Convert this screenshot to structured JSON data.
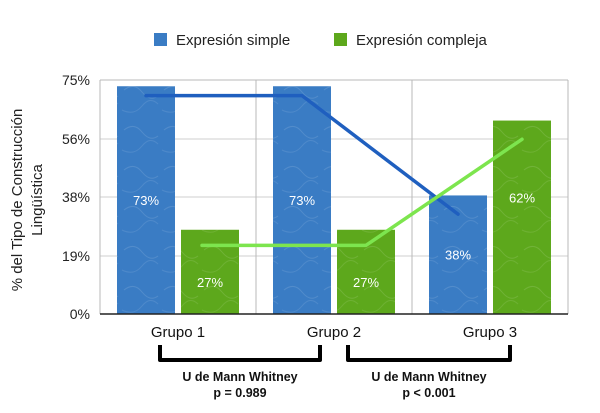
{
  "chart_data": {
    "type": "bar",
    "categories": [
      "Grupo 1",
      "Grupo 2",
      "Grupo 3"
    ],
    "series": [
      {
        "name": "Expresión simple",
        "values": [
          73,
          73,
          38
        ],
        "labels": [
          "73%",
          "73%",
          "38%"
        ],
        "color": "#3a7cc4"
      },
      {
        "name": "Expresión compleja",
        "values": [
          27,
          27,
          62
        ],
        "labels": [
          "27%",
          "27%",
          "62%"
        ],
        "color": "#5da81c"
      }
    ],
    "trend_lines": [
      {
        "series": "Expresión simple",
        "values": [
          70,
          70,
          32
        ],
        "color": "#1f5fbf"
      },
      {
        "series": "Expresión compleja",
        "values": [
          22,
          22,
          56
        ],
        "color": "#7de54e"
      }
    ],
    "ylabel_line1": "% del Tipo de Construcción",
    "ylabel_line2": "Lingüística",
    "yticks": [
      "0%",
      "19%",
      "38%",
      "56%",
      "75%"
    ],
    "ylim": [
      0,
      75
    ],
    "grid": true,
    "legend_position": "top",
    "annotations": [
      {
        "line1": "U de Mann Whitney",
        "line2": "p = 0.989"
      },
      {
        "line1": "U de Mann Whitney",
        "line2": "p < 0.001"
      }
    ]
  }
}
